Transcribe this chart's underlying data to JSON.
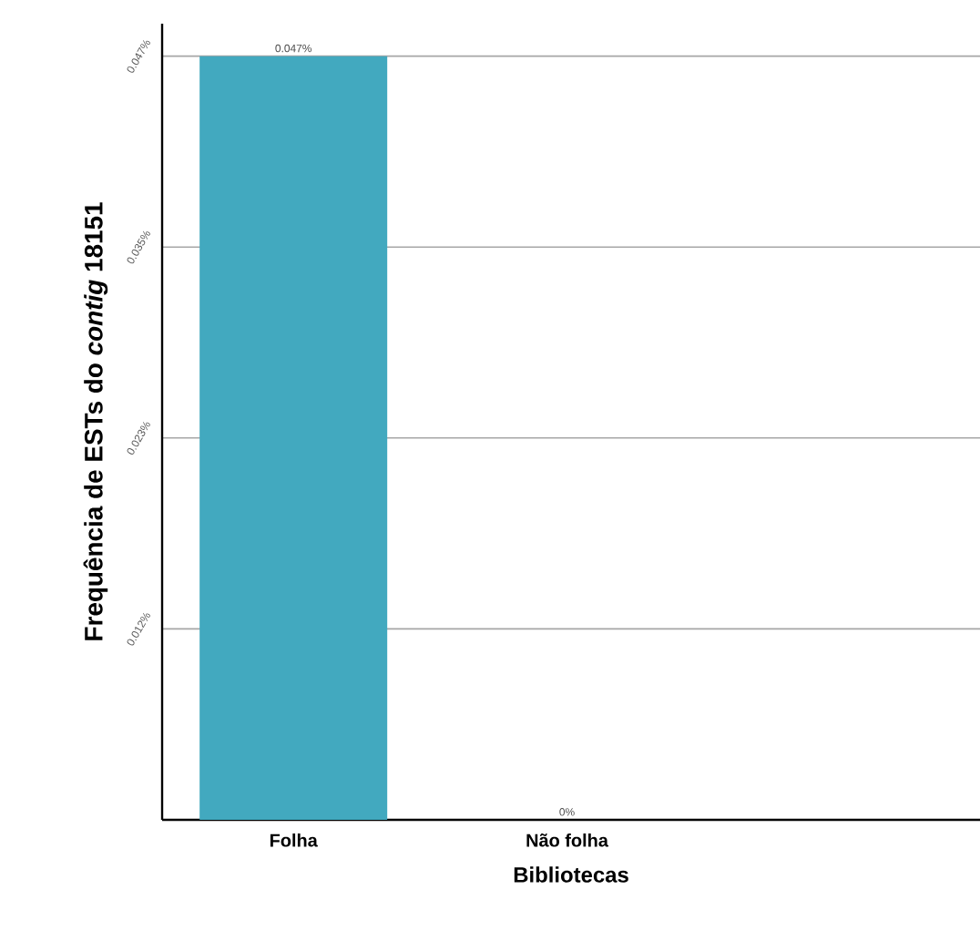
{
  "chart_data": {
    "type": "bar",
    "xlabel": "Bibliotecas",
    "ylabel": "Frequência  de ESTs do *contig* 18151",
    "categories": [
      "Folha",
      "Não folha"
    ],
    "values": [
      0.047,
      0
    ],
    "value_labels": [
      "0.047%",
      "0%"
    ],
    "color": "#42a9bf",
    "ylim": [
      0,
      0.049
    ],
    "yticks": [
      {
        "value": 0.01175,
        "label": "0.012%"
      },
      {
        "value": 0.0235,
        "label": "0.023%"
      },
      {
        "value": 0.03525,
        "label": "0.035%"
      },
      {
        "value": 0.047,
        "label": "0.047%"
      }
    ],
    "grid": "y"
  }
}
